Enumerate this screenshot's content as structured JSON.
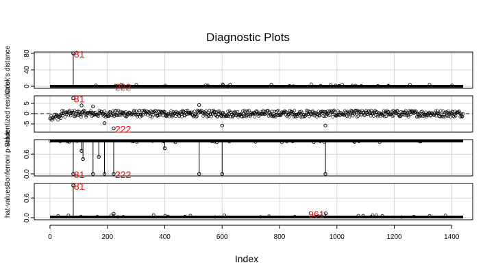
{
  "chart_data": {
    "type": "scatter",
    "title": "Diagnostic Plots",
    "xlabel": "Index",
    "xlim": [
      0,
      1440
    ],
    "x_ticks": [
      "0",
      "200",
      "400",
      "600",
      "800",
      "1000",
      "1200",
      "1400"
    ],
    "grid": true,
    "panels": [
      {
        "ylabel": "Cook's distance",
        "style": "spikes",
        "ylim": [
          0,
          80
        ],
        "y_ticks": [
          "0",
          "40",
          "80"
        ],
        "spikes": [
          {
            "x": 81,
            "y": 80
          }
        ],
        "baseline_value": 0,
        "annotations": [
          {
            "label": "81",
            "x": 81,
            "y": 80
          },
          {
            "label": "222",
            "x": 222,
            "y": 0
          }
        ]
      },
      {
        "ylabel": "Studentized residuals",
        "style": "points",
        "ylim": [
          -8,
          8
        ],
        "y_ticks": [
          "-5",
          "0",
          "5"
        ],
        "reference_line": 0,
        "points": [
          {
            "x": 81,
            "y": 7.5
          },
          {
            "x": 222,
            "y": -7.2
          },
          {
            "x": 190,
            "y": -4.6
          },
          {
            "x": 110,
            "y": 4
          },
          {
            "x": 150,
            "y": 3.5
          },
          {
            "x": 520,
            "y": 4.2
          },
          {
            "x": 600,
            "y": -5.8
          },
          {
            "x": 960,
            "y": -5.8
          }
        ],
        "annotations": [
          {
            "label": "81",
            "x": 81,
            "y": 7.5
          },
          {
            "label": "222",
            "x": 222,
            "y": -7.2
          }
        ]
      },
      {
        "ylabel": "Bonferroni p-value",
        "style": "spikes",
        "ylim": [
          0,
          1
        ],
        "y_ticks": [
          "0.0",
          "0.6"
        ],
        "baseline_value": 1,
        "spikes": [
          {
            "x": 81,
            "y": 0
          },
          {
            "x": 110,
            "y": 0.7
          },
          {
            "x": 115,
            "y": 0.45
          },
          {
            "x": 150,
            "y": 0
          },
          {
            "x": 170,
            "y": 0.52
          },
          {
            "x": 190,
            "y": 0
          },
          {
            "x": 222,
            "y": 0
          },
          {
            "x": 400,
            "y": 0.78
          },
          {
            "x": 520,
            "y": 0
          },
          {
            "x": 600,
            "y": 0
          },
          {
            "x": 960,
            "y": 0
          }
        ],
        "annotations": [
          {
            "label": "81",
            "x": 81,
            "y": 0
          },
          {
            "label": "222",
            "x": 222,
            "y": 0
          }
        ]
      },
      {
        "ylabel": "hat-values",
        "style": "spikes",
        "ylim": [
          0,
          1
        ],
        "y_ticks": [
          "0.0",
          "0.6"
        ],
        "baseline_value": 0.02,
        "spikes": [
          {
            "x": 81,
            "y": 0.98
          },
          {
            "x": 222,
            "y": 0.12
          },
          {
            "x": 961,
            "y": 0.13
          }
        ],
        "annotations": [
          {
            "label": "81",
            "x": 81,
            "y": 0.98
          },
          {
            "label": "961",
            "x": 961,
            "y": 0.13
          }
        ]
      }
    ]
  }
}
